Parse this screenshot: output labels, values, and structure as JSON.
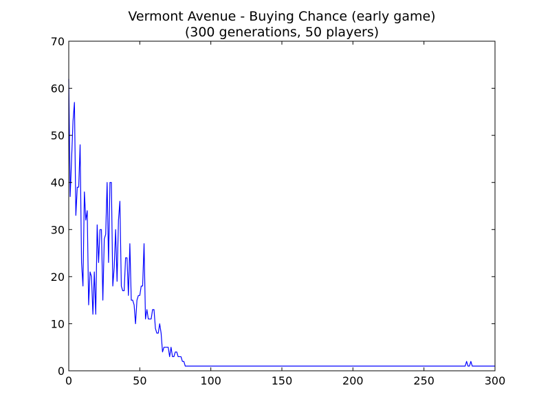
{
  "chart_data": {
    "type": "line",
    "title": "Vermont Avenue - Buying Chance (early game)",
    "subtitle": "(300 generations, 50 players)",
    "xlabel": "",
    "ylabel": "",
    "xlim": [
      0,
      300
    ],
    "ylim": [
      0,
      70
    ],
    "xticks": [
      0,
      50,
      100,
      150,
      200,
      250,
      300
    ],
    "yticks": [
      0,
      10,
      20,
      30,
      40,
      50,
      60,
      70
    ],
    "grid": false,
    "legend": "none",
    "series": [
      {
        "color": "#0000ff",
        "x": [
          0,
          1,
          2,
          3,
          4,
          5,
          6,
          7,
          8,
          9,
          10,
          11,
          12,
          13,
          14,
          15,
          16,
          17,
          18,
          19,
          20,
          21,
          22,
          23,
          24,
          25,
          26,
          27,
          28,
          29,
          30,
          31,
          32,
          33,
          34,
          35,
          36,
          37,
          38,
          39,
          40,
          41,
          42,
          43,
          44,
          45,
          46,
          47,
          48,
          49,
          50,
          51,
          52,
          53,
          54,
          55,
          56,
          57,
          58,
          59,
          60,
          61,
          62,
          63,
          64,
          65,
          66,
          67,
          68,
          69,
          70,
          71,
          72,
          73,
          74,
          75,
          76,
          77,
          78,
          79,
          80,
          81,
          82,
          83,
          84,
          279,
          280,
          281,
          282,
          283,
          284,
          300
        ],
        "y": [
          62,
          37,
          45,
          53,
          57,
          33,
          39,
          39,
          48,
          23,
          18,
          38,
          32,
          34,
          14,
          21,
          20,
          12,
          21,
          12,
          31,
          23,
          30,
          30,
          15,
          28,
          29,
          40,
          23,
          40,
          40,
          18,
          22,
          30,
          19,
          32,
          36,
          18,
          17,
          17,
          24,
          24,
          16,
          27,
          15,
          15,
          14,
          10,
          15,
          16,
          16,
          18,
          18,
          27,
          11,
          13,
          11,
          11,
          11,
          13,
          13,
          9,
          8,
          8,
          10,
          8,
          4,
          5,
          5,
          5,
          5,
          3,
          5,
          3,
          3,
          4,
          4,
          3,
          3,
          3,
          2,
          2,
          1,
          1,
          1,
          1,
          2,
          1,
          1,
          2,
          1,
          1
        ]
      }
    ]
  }
}
